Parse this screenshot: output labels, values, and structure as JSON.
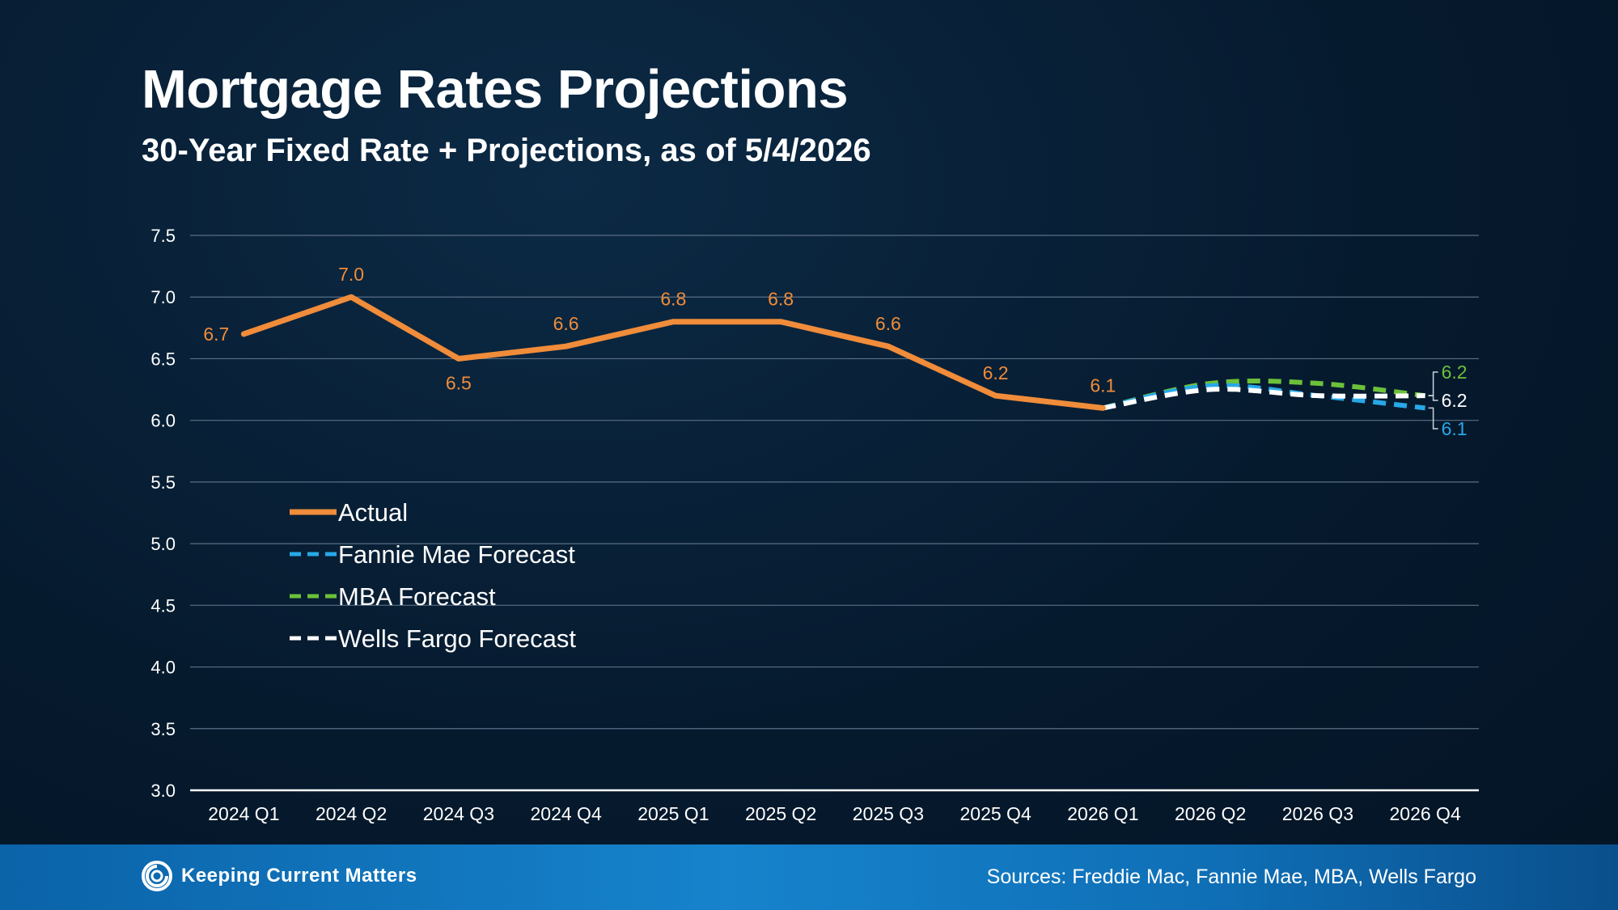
{
  "title": "Mortgage Rates Projections",
  "subtitle": "30-Year Fixed Rate + Projections, as of 5/4/2026",
  "footer": {
    "logo_text": "Keeping Current Matters",
    "sources": "Sources: Freddie Mac, Fannie Mae, MBA, Wells Fargo"
  },
  "colors": {
    "actual": "#f08c3a",
    "fannie_mae": "#27a8e8",
    "mba": "#6cc13a",
    "wells_fargo": "#ffffff"
  },
  "chart_data": {
    "type": "line",
    "title": "Mortgage Rates Projections",
    "subtitle": "30-Year Fixed Rate + Projections, as of 5/4/2026",
    "xlabel": "",
    "ylabel": "",
    "ylim": [
      3.0,
      7.5
    ],
    "yticks": [
      "3.0",
      "3.5",
      "4.0",
      "4.5",
      "5.0",
      "5.5",
      "6.0",
      "6.5",
      "7.0",
      "7.5"
    ],
    "categories": [
      "2024 Q1",
      "2024 Q2",
      "2024 Q3",
      "2024 Q4",
      "2025 Q1",
      "2025 Q2",
      "2025 Q3",
      "2025 Q4",
      "2026 Q1",
      "2026 Q2",
      "2026 Q3",
      "2026 Q4"
    ],
    "grid": true,
    "legend": "left-middle",
    "series": [
      {
        "name": "Actual",
        "style": "solid",
        "color": "#f08c3a",
        "values": [
          6.7,
          7.0,
          6.5,
          6.6,
          6.8,
          6.8,
          6.6,
          6.2,
          6.1,
          null,
          null,
          null
        ],
        "labels": [
          "6.7",
          "7.0",
          "6.5",
          "6.6",
          "6.8",
          "6.8",
          "6.6",
          "6.2",
          "6.1",
          "",
          "",
          ""
        ]
      },
      {
        "name": "Fannie Mae Forecast",
        "style": "dashed",
        "color": "#27a8e8",
        "values": [
          null,
          null,
          null,
          null,
          null,
          null,
          null,
          null,
          6.1,
          6.28,
          6.2,
          6.1
        ],
        "end_label": "6.1"
      },
      {
        "name": "MBA Forecast",
        "style": "dashed",
        "color": "#6cc13a",
        "values": [
          null,
          null,
          null,
          null,
          null,
          null,
          null,
          null,
          6.1,
          6.3,
          6.3,
          6.2
        ],
        "end_label": "6.2"
      },
      {
        "name": "Wells Fargo Forecast",
        "style": "dashed",
        "color": "#ffffff",
        "values": [
          null,
          null,
          null,
          null,
          null,
          null,
          null,
          null,
          6.1,
          6.25,
          6.2,
          6.2
        ],
        "end_label": "6.2"
      }
    ]
  }
}
